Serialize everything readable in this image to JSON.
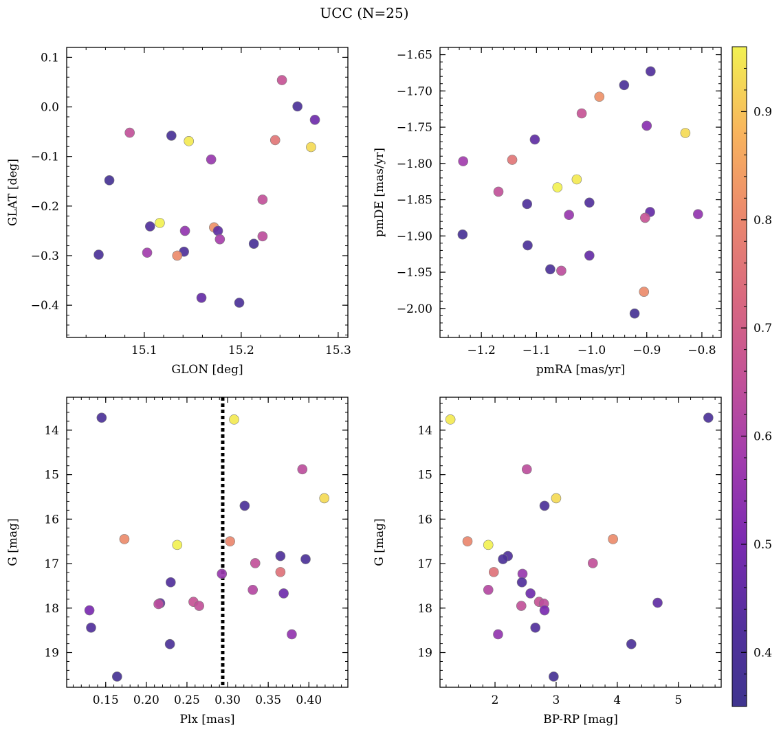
{
  "figure": {
    "suptitle": "UCC (N=25)"
  },
  "colorbar": {
    "colormap": "plasma",
    "range": [
      0.35,
      0.96
    ],
    "ticks": [
      0.4,
      0.5,
      0.6,
      0.7,
      0.8,
      0.9
    ]
  },
  "chart_data": [
    {
      "type": "scatter",
      "id": "glon-glat",
      "xlabel": "GLON [deg]",
      "ylabel": "GLAT [deg]",
      "xlim": [
        15.02,
        15.31
      ],
      "ylim": [
        -0.465,
        0.12
      ],
      "xticks": [
        15.1,
        15.2,
        15.3
      ],
      "yticks": [
        0.1,
        0.0,
        -0.1,
        -0.2,
        -0.3,
        -0.4
      ],
      "xticklabels": [
        "15.1",
        "15.2",
        "15.3"
      ],
      "yticklabels": [
        "0.1",
        "0.0",
        "−0.1",
        "−0.2",
        "−0.3",
        "−0.4"
      ],
      "points": [
        {
          "x": 15.242,
          "y": 0.054,
          "c": 0.66
        },
        {
          "x": 15.258,
          "y": 0.001,
          "c": 0.4
        },
        {
          "x": 15.276,
          "y": -0.026,
          "c": 0.48
        },
        {
          "x": 15.085,
          "y": -0.052,
          "c": 0.65
        },
        {
          "x": 15.128,
          "y": -0.058,
          "c": 0.39
        },
        {
          "x": 15.146,
          "y": -0.069,
          "c": 0.95
        },
        {
          "x": 15.235,
          "y": -0.067,
          "c": 0.76
        },
        {
          "x": 15.272,
          "y": -0.081,
          "c": 0.93
        },
        {
          "x": 15.169,
          "y": -0.106,
          "c": 0.56
        },
        {
          "x": 15.064,
          "y": -0.148,
          "c": 0.38
        },
        {
          "x": 15.222,
          "y": -0.187,
          "c": 0.65
        },
        {
          "x": 15.116,
          "y": -0.234,
          "c": 0.96
        },
        {
          "x": 15.106,
          "y": -0.241,
          "c": 0.42
        },
        {
          "x": 15.142,
          "y": -0.25,
          "c": 0.55
        },
        {
          "x": 15.172,
          "y": -0.243,
          "c": 0.82
        },
        {
          "x": 15.176,
          "y": -0.25,
          "c": 0.45
        },
        {
          "x": 15.178,
          "y": -0.267,
          "c": 0.59
        },
        {
          "x": 15.222,
          "y": -0.261,
          "c": 0.64
        },
        {
          "x": 15.213,
          "y": -0.276,
          "c": 0.39
        },
        {
          "x": 15.141,
          "y": -0.292,
          "c": 0.41
        },
        {
          "x": 15.103,
          "y": -0.294,
          "c": 0.58
        },
        {
          "x": 15.053,
          "y": -0.298,
          "c": 0.4
        },
        {
          "x": 15.134,
          "y": -0.3,
          "c": 0.81
        },
        {
          "x": 15.159,
          "y": -0.385,
          "c": 0.46
        },
        {
          "x": 15.198,
          "y": -0.395,
          "c": 0.4
        }
      ]
    },
    {
      "type": "scatter",
      "id": "pmra-pmde",
      "xlabel": "pmRA [mas/yr]",
      "ylabel": "pmDE [mas/yr]",
      "xlim": [
        -1.275,
        -0.765
      ],
      "ylim": [
        -2.04,
        -1.64
      ],
      "xticks": [
        -1.2,
        -1.1,
        -1.0,
        -0.9,
        -0.8
      ],
      "yticks": [
        -1.65,
        -1.7,
        -1.75,
        -1.8,
        -1.85,
        -1.9,
        -1.95,
        -2.0
      ],
      "xticklabels": [
        "−1.2",
        "−1.1",
        "−1.0",
        "−0.9",
        "−0.8"
      ],
      "yticklabels": [
        "−1.65",
        "−1.70",
        "−1.75",
        "−1.80",
        "−1.85",
        "−1.90",
        "−1.95",
        "−2.00"
      ],
      "points": [
        {
          "x": -0.893,
          "y": -1.673,
          "c": 0.42
        },
        {
          "x": -0.941,
          "y": -1.692,
          "c": 0.4
        },
        {
          "x": -0.986,
          "y": -1.708,
          "c": 0.82
        },
        {
          "x": -1.018,
          "y": -1.731,
          "c": 0.66
        },
        {
          "x": -0.9,
          "y": -1.748,
          "c": 0.53
        },
        {
          "x": -0.83,
          "y": -1.758,
          "c": 0.93
        },
        {
          "x": -1.103,
          "y": -1.767,
          "c": 0.45
        },
        {
          "x": -1.233,
          "y": -1.797,
          "c": 0.58
        },
        {
          "x": -1.144,
          "y": -1.795,
          "c": 0.76
        },
        {
          "x": -1.027,
          "y": -1.822,
          "c": 0.95
        },
        {
          "x": -1.062,
          "y": -1.833,
          "c": 0.96
        },
        {
          "x": -1.169,
          "y": -1.839,
          "c": 0.65
        },
        {
          "x": -1.117,
          "y": -1.856,
          "c": 0.41
        },
        {
          "x": -1.004,
          "y": -1.854,
          "c": 0.42
        },
        {
          "x": -0.894,
          "y": -1.867,
          "c": 0.46
        },
        {
          "x": -1.041,
          "y": -1.871,
          "c": 0.56
        },
        {
          "x": -0.807,
          "y": -1.87,
          "c": 0.55
        },
        {
          "x": -0.903,
          "y": -1.875,
          "c": 0.66
        },
        {
          "x": -1.234,
          "y": -1.898,
          "c": 0.39
        },
        {
          "x": -1.116,
          "y": -1.913,
          "c": 0.4
        },
        {
          "x": -1.004,
          "y": -1.927,
          "c": 0.46
        },
        {
          "x": -1.075,
          "y": -1.946,
          "c": 0.4
        },
        {
          "x": -1.055,
          "y": -1.948,
          "c": 0.64
        },
        {
          "x": -0.905,
          "y": -1.977,
          "c": 0.81
        },
        {
          "x": -0.922,
          "y": -2.007,
          "c": 0.38
        }
      ]
    },
    {
      "type": "scatter",
      "id": "plx-g",
      "xlabel": "Plx [mas]",
      "ylabel": "G [mag]",
      "xlim": [
        0.102,
        0.448
      ],
      "ylim": [
        19.78,
        13.26
      ],
      "invert_y": true,
      "vline": {
        "x": 0.294,
        "style": "dotted"
      },
      "xticks": [
        0.15,
        0.2,
        0.25,
        0.3,
        0.35,
        0.4
      ],
      "yticks": [
        14,
        15,
        16,
        17,
        18,
        19
      ],
      "xticklabels": [
        "0.15",
        "0.20",
        "0.25",
        "0.30",
        "0.35",
        "0.40"
      ],
      "yticklabels": [
        "14",
        "15",
        "16",
        "17",
        "18",
        "19"
      ],
      "points": [
        {
          "x": 0.145,
          "y": 13.72,
          "c": 0.4
        },
        {
          "x": 0.308,
          "y": 13.76,
          "c": 0.95
        },
        {
          "x": 0.392,
          "y": 14.88,
          "c": 0.64
        },
        {
          "x": 0.419,
          "y": 15.53,
          "c": 0.93
        },
        {
          "x": 0.321,
          "y": 15.7,
          "c": 0.4
        },
        {
          "x": 0.173,
          "y": 16.45,
          "c": 0.81
        },
        {
          "x": 0.238,
          "y": 16.58,
          "c": 0.96
        },
        {
          "x": 0.303,
          "y": 16.5,
          "c": 0.8
        },
        {
          "x": 0.365,
          "y": 16.83,
          "c": 0.41
        },
        {
          "x": 0.396,
          "y": 16.9,
          "c": 0.4
        },
        {
          "x": 0.334,
          "y": 16.99,
          "c": 0.65
        },
        {
          "x": 0.365,
          "y": 17.19,
          "c": 0.75
        },
        {
          "x": 0.293,
          "y": 17.23,
          "c": 0.56
        },
        {
          "x": 0.23,
          "y": 17.42,
          "c": 0.42
        },
        {
          "x": 0.331,
          "y": 17.59,
          "c": 0.62
        },
        {
          "x": 0.369,
          "y": 17.67,
          "c": 0.48
        },
        {
          "x": 0.258,
          "y": 17.86,
          "c": 0.66
        },
        {
          "x": 0.265,
          "y": 17.95,
          "c": 0.65
        },
        {
          "x": 0.217,
          "y": 17.89,
          "c": 0.45
        },
        {
          "x": 0.215,
          "y": 17.91,
          "c": 0.64
        },
        {
          "x": 0.13,
          "y": 18.05,
          "c": 0.5
        },
        {
          "x": 0.132,
          "y": 18.44,
          "c": 0.42
        },
        {
          "x": 0.379,
          "y": 18.59,
          "c": 0.55
        },
        {
          "x": 0.229,
          "y": 18.81,
          "c": 0.4
        },
        {
          "x": 0.164,
          "y": 19.54,
          "c": 0.38
        }
      ]
    },
    {
      "type": "scatter",
      "id": "bprp-g",
      "xlabel": "BP-RP [mag]",
      "ylabel": "G [mag]",
      "xlim": [
        1.1,
        5.7
      ],
      "ylim": [
        19.78,
        13.26
      ],
      "invert_y": true,
      "xticks": [
        2,
        3,
        4,
        5
      ],
      "yticks": [
        14,
        15,
        16,
        17,
        18,
        19
      ],
      "xticklabels": [
        "2",
        "3",
        "4",
        "5"
      ],
      "yticklabels": [
        "14",
        "15",
        "16",
        "17",
        "18",
        "19"
      ],
      "points": [
        {
          "x": 1.27,
          "y": 13.76,
          "c": 0.95
        },
        {
          "x": 5.49,
          "y": 13.72,
          "c": 0.4
        },
        {
          "x": 2.52,
          "y": 14.88,
          "c": 0.64
        },
        {
          "x": 3.0,
          "y": 15.53,
          "c": 0.93
        },
        {
          "x": 2.81,
          "y": 15.7,
          "c": 0.4
        },
        {
          "x": 1.55,
          "y": 16.5,
          "c": 0.8
        },
        {
          "x": 1.89,
          "y": 16.58,
          "c": 0.96
        },
        {
          "x": 3.93,
          "y": 16.45,
          "c": 0.81
        },
        {
          "x": 2.21,
          "y": 16.83,
          "c": 0.41
        },
        {
          "x": 2.13,
          "y": 16.9,
          "c": 0.4
        },
        {
          "x": 3.6,
          "y": 16.99,
          "c": 0.65
        },
        {
          "x": 1.98,
          "y": 17.19,
          "c": 0.75
        },
        {
          "x": 2.45,
          "y": 17.23,
          "c": 0.56
        },
        {
          "x": 2.44,
          "y": 17.42,
          "c": 0.42
        },
        {
          "x": 1.89,
          "y": 17.59,
          "c": 0.62
        },
        {
          "x": 2.58,
          "y": 17.67,
          "c": 0.48
        },
        {
          "x": 2.72,
          "y": 17.86,
          "c": 0.66
        },
        {
          "x": 2.8,
          "y": 17.9,
          "c": 0.64
        },
        {
          "x": 2.43,
          "y": 17.95,
          "c": 0.65
        },
        {
          "x": 4.66,
          "y": 17.88,
          "c": 0.45
        },
        {
          "x": 2.81,
          "y": 18.05,
          "c": 0.5
        },
        {
          "x": 2.66,
          "y": 18.44,
          "c": 0.42
        },
        {
          "x": 2.05,
          "y": 18.59,
          "c": 0.55
        },
        {
          "x": 4.23,
          "y": 18.81,
          "c": 0.4
        },
        {
          "x": 2.96,
          "y": 19.54,
          "c": 0.38
        }
      ]
    }
  ]
}
